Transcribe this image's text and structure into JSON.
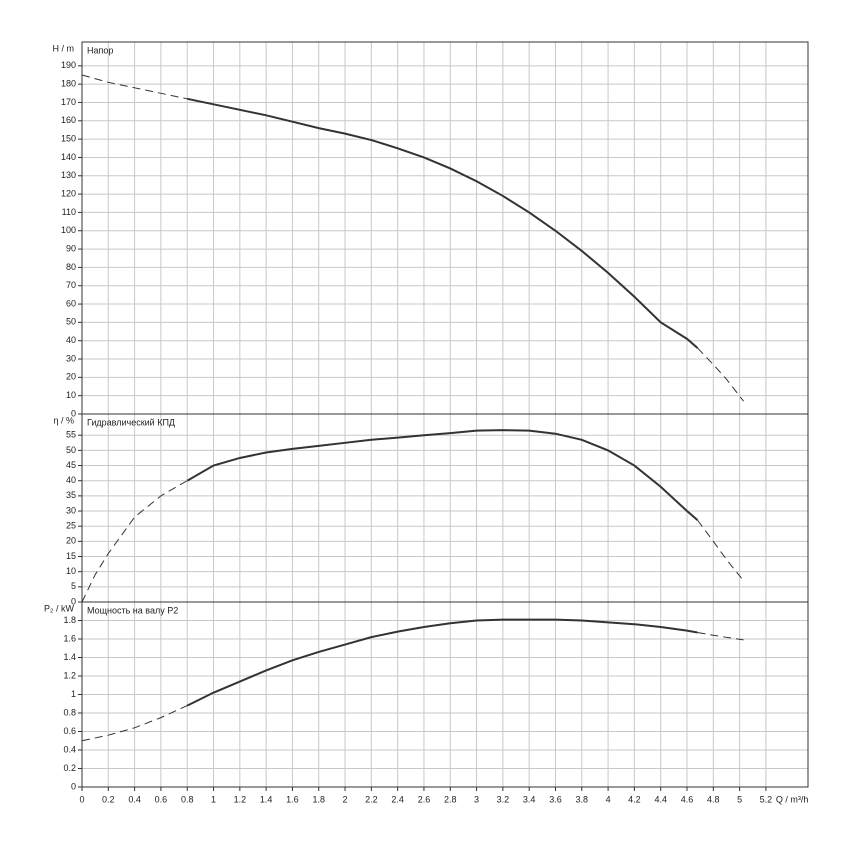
{
  "chart_data": [
    {
      "type": "line",
      "title": "Напор",
      "ylabel": "H / m",
      "xlim": [
        0,
        5.52
      ],
      "ylim": [
        0,
        203
      ],
      "yticks": [
        0,
        10,
        20,
        30,
        40,
        50,
        60,
        70,
        80,
        90,
        100,
        110,
        120,
        130,
        140,
        150,
        160,
        170,
        180,
        190
      ],
      "grid": true,
      "series": [
        {
          "color": "#333333",
          "dashed": true,
          "x": [
            0,
            0.2,
            0.4,
            0.6,
            0.8
          ],
          "values": [
            185,
            181,
            178,
            175,
            172
          ]
        },
        {
          "color": "#333333",
          "dashed": false,
          "x": [
            0.8,
            1.0,
            1.2,
            1.4,
            1.6,
            1.8,
            2.0,
            2.2,
            2.4,
            2.6,
            2.8,
            3.0,
            3.2,
            3.4,
            3.6,
            3.8,
            4.0,
            4.2,
            4.4,
            4.6,
            4.68
          ],
          "values": [
            172,
            169,
            166,
            163,
            159.5,
            156,
            153,
            149.5,
            145,
            140,
            134,
            127,
            119,
            110,
            100,
            89,
            77,
            64,
            50,
            41,
            36
          ]
        },
        {
          "color": "#333333",
          "dashed": true,
          "x": [
            4.68,
            4.8,
            4.9,
            5.03
          ],
          "values": [
            36,
            27,
            19,
            7
          ]
        }
      ]
    },
    {
      "type": "line",
      "title": "Гидравлический КПД",
      "ylabel": "η / %",
      "xlim": [
        0,
        5.52
      ],
      "ylim": [
        0,
        62
      ],
      "yticks": [
        0,
        5,
        10,
        15,
        20,
        25,
        30,
        35,
        40,
        45,
        50,
        55
      ],
      "grid": true,
      "series": [
        {
          "color": "#333333",
          "dashed": true,
          "x": [
            0,
            0.1,
            0.2,
            0.4,
            0.6,
            0.8
          ],
          "values": [
            0,
            9,
            16,
            28,
            35,
            40
          ]
        },
        {
          "color": "#333333",
          "dashed": false,
          "x": [
            0.8,
            1.0,
            1.2,
            1.4,
            1.6,
            1.8,
            2.0,
            2.2,
            2.4,
            2.6,
            2.8,
            3.0,
            3.2,
            3.4,
            3.6,
            3.8,
            4.0,
            4.2,
            4.4,
            4.6,
            4.68
          ],
          "values": [
            40,
            45,
            47.5,
            49.3,
            50.5,
            51.5,
            52.5,
            53.5,
            54.2,
            55,
            55.7,
            56.5,
            56.7,
            56.5,
            55.5,
            53.5,
            50,
            45,
            38,
            30,
            27
          ]
        },
        {
          "color": "#333333",
          "dashed": true,
          "x": [
            4.68,
            4.8,
            4.9,
            5.03
          ],
          "values": [
            27,
            20,
            14,
            7
          ]
        }
      ]
    },
    {
      "type": "line",
      "title": "Мощность на валу P2",
      "ylabel": "P₂ / kW",
      "xlabel": "Q / m³/h",
      "xlim": [
        0,
        5.52
      ],
      "ylim": [
        0,
        2.0
      ],
      "xticks": [
        0,
        0.2,
        0.4,
        0.6,
        0.8,
        1,
        1.2,
        1.4,
        1.6,
        1.8,
        2,
        2.2,
        2.4,
        2.6,
        2.8,
        3,
        3.2,
        3.4,
        3.6,
        3.8,
        4,
        4.2,
        4.4,
        4.6,
        4.8,
        5,
        5.2
      ],
      "yticks": [
        0,
        0.2,
        0.4,
        0.6,
        0.8,
        1,
        1.2,
        1.4,
        1.6,
        1.8
      ],
      "grid": true,
      "series": [
        {
          "color": "#333333",
          "dashed": true,
          "x": [
            0,
            0.2,
            0.4,
            0.6,
            0.8
          ],
          "values": [
            0.5,
            0.56,
            0.64,
            0.75,
            0.88
          ]
        },
        {
          "color": "#333333",
          "dashed": false,
          "x": [
            0.8,
            1.0,
            1.2,
            1.4,
            1.6,
            1.8,
            2.0,
            2.2,
            2.4,
            2.6,
            2.8,
            3.0,
            3.2,
            3.4,
            3.6,
            3.8,
            4.0,
            4.2,
            4.4,
            4.6,
            4.68
          ],
          "values": [
            0.88,
            1.02,
            1.14,
            1.26,
            1.37,
            1.46,
            1.54,
            1.62,
            1.68,
            1.73,
            1.77,
            1.8,
            1.81,
            1.81,
            1.81,
            1.8,
            1.78,
            1.76,
            1.73,
            1.69,
            1.67
          ]
        },
        {
          "color": "#333333",
          "dashed": true,
          "x": [
            4.68,
            4.8,
            5.03
          ],
          "values": [
            1.67,
            1.64,
            1.59
          ]
        }
      ]
    }
  ]
}
